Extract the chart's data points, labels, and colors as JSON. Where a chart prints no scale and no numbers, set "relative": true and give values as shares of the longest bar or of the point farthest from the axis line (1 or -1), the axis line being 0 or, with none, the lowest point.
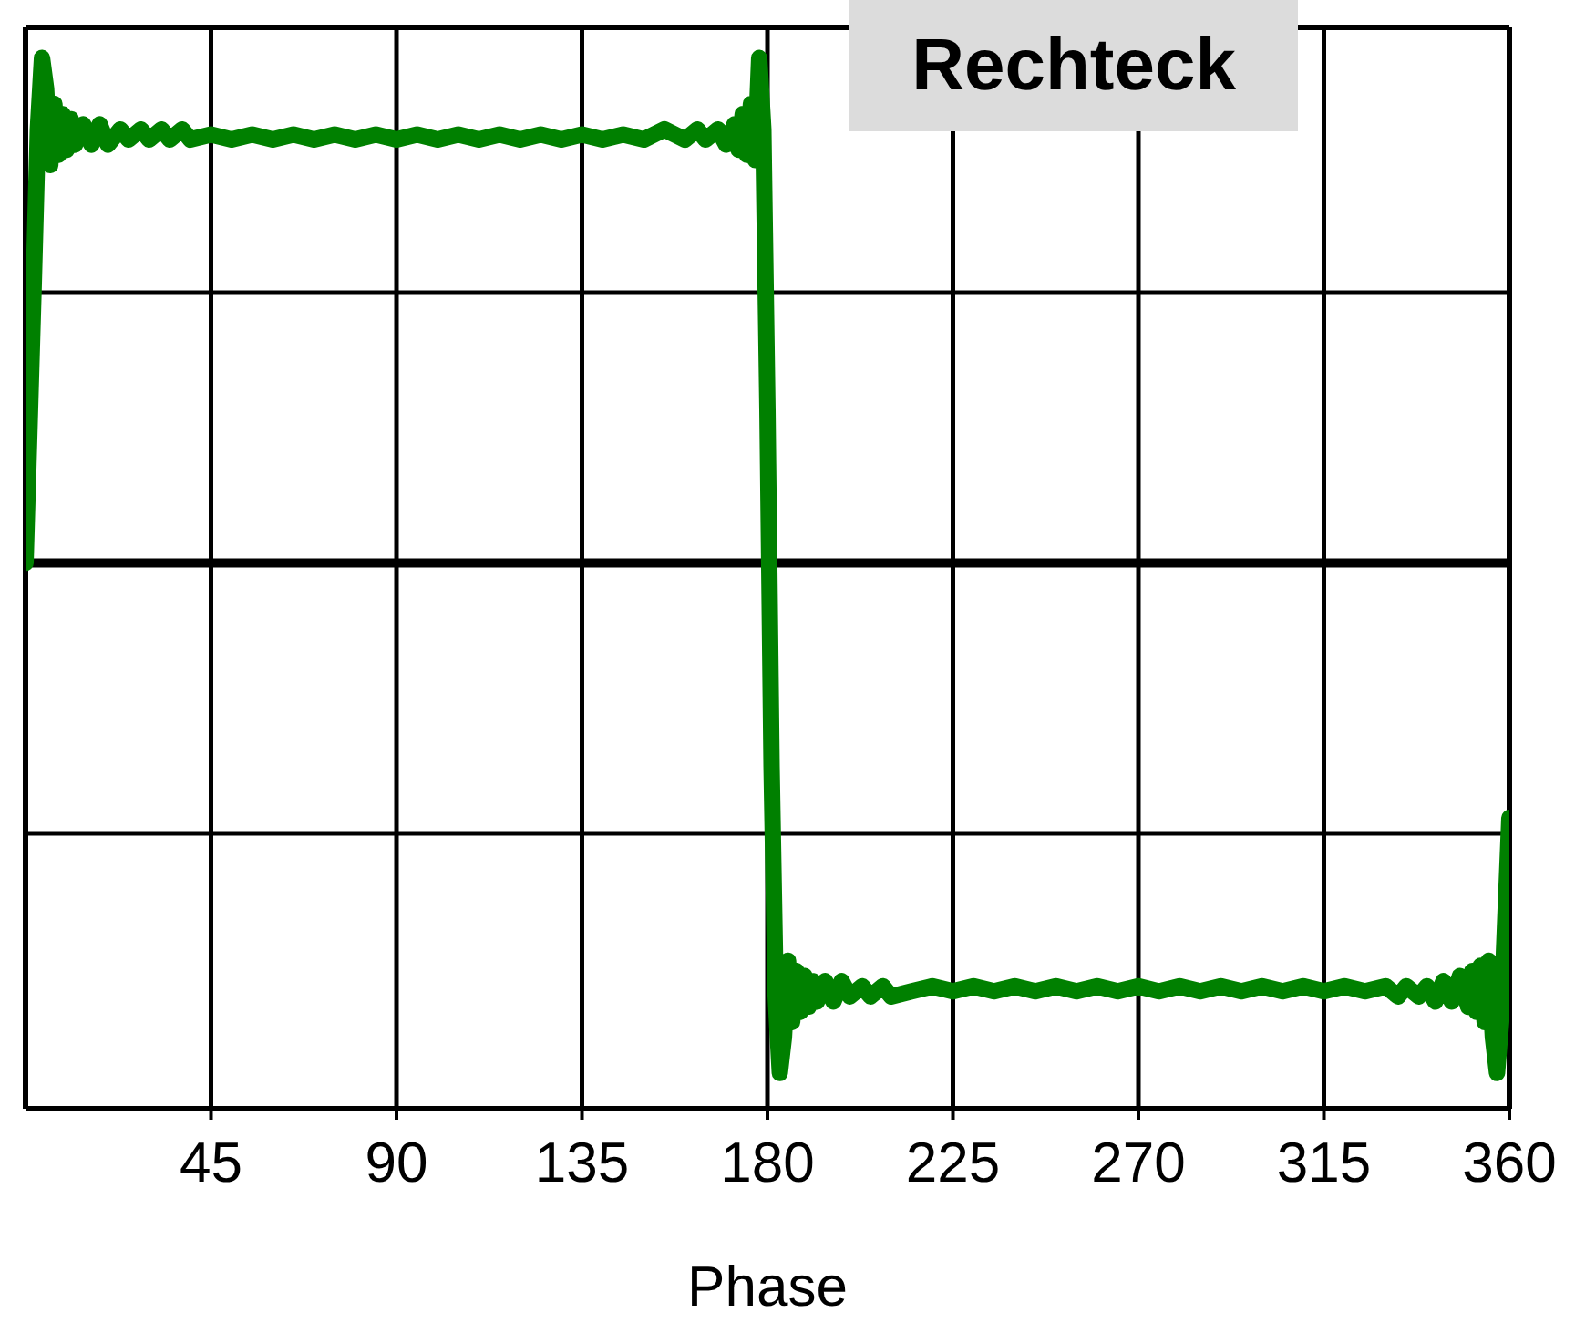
{
  "chart_data": {
    "type": "line",
    "title": "Rechteck",
    "xlabel": "Phase",
    "relative": true,
    "xlim": [
      0,
      360
    ],
    "xticks": [
      45,
      90,
      135,
      180,
      225,
      270,
      315,
      360
    ],
    "grid": "x",
    "marker": "none",
    "line_style": "solid",
    "ref_lines": [
      {
        "axis": "y",
        "value": 0.53
      },
      {
        "axis": "y",
        "value": -0.53
      }
    ],
    "series": [
      {
        "color": "#008000",
        "x": [
          0,
          2,
          3,
          4,
          5,
          6,
          7,
          8,
          9,
          10,
          11,
          12,
          14,
          16,
          18,
          20,
          23,
          25,
          28,
          30,
          33,
          35,
          38,
          40,
          45,
          50,
          55,
          60,
          65,
          70,
          75,
          80,
          85,
          90,
          95,
          100,
          105,
          110,
          115,
          120,
          125,
          130,
          135,
          140,
          145,
          150,
          155,
          160,
          163,
          165,
          168,
          170,
          172,
          173,
          174,
          175,
          176,
          177,
          178,
          179,
          180,
          181,
          182,
          183,
          184,
          185,
          186,
          187,
          188,
          189,
          190,
          191,
          192,
          194,
          196,
          198,
          200,
          203,
          205,
          208,
          210,
          215,
          220,
          225,
          230,
          235,
          240,
          245,
          250,
          255,
          260,
          265,
          270,
          275,
          280,
          285,
          290,
          295,
          300,
          305,
          310,
          315,
          320,
          325,
          330,
          333,
          335,
          338,
          340,
          342,
          344,
          346,
          348,
          350,
          351,
          352,
          353,
          354,
          355,
          356,
          357,
          358,
          359,
          360
        ],
        "values": [
          0,
          0.55,
          0.85,
          0.99,
          0.93,
          0.78,
          0.9,
          0.8,
          0.88,
          0.81,
          0.87,
          0.82,
          0.86,
          0.82,
          0.86,
          0.82,
          0.85,
          0.83,
          0.85,
          0.83,
          0.85,
          0.83,
          0.85,
          0.83,
          0.84,
          0.83,
          0.84,
          0.83,
          0.84,
          0.83,
          0.84,
          0.83,
          0.84,
          0.83,
          0.84,
          0.83,
          0.84,
          0.83,
          0.84,
          0.83,
          0.84,
          0.83,
          0.84,
          0.83,
          0.84,
          0.83,
          0.85,
          0.83,
          0.85,
          0.83,
          0.85,
          0.82,
          0.86,
          0.81,
          0.88,
          0.8,
          0.9,
          0.79,
          0.99,
          0.85,
          0.3,
          -0.4,
          -0.85,
          -1,
          -0.93,
          -0.78,
          -0.9,
          -0.8,
          -0.88,
          -0.81,
          -0.87,
          -0.82,
          -0.86,
          -0.82,
          -0.86,
          -0.82,
          -0.85,
          -0.83,
          -0.85,
          -0.83,
          -0.85,
          -0.84,
          -0.83,
          -0.84,
          -0.83,
          -0.84,
          -0.83,
          -0.84,
          -0.83,
          -0.84,
          -0.83,
          -0.84,
          -0.83,
          -0.84,
          -0.83,
          -0.84,
          -0.83,
          -0.84,
          -0.83,
          -0.84,
          -0.83,
          -0.84,
          -0.83,
          -0.84,
          -0.83,
          -0.85,
          -0.83,
          -0.85,
          -0.83,
          -0.86,
          -0.82,
          -0.86,
          -0.81,
          -0.87,
          -0.8,
          -0.88,
          -0.79,
          -0.9,
          -0.78,
          -0.93,
          -1,
          -0.9,
          -0.7,
          -0.5
        ]
      }
    ]
  }
}
